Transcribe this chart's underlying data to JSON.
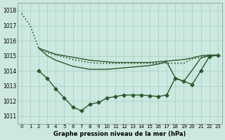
{
  "title": "Graphe pression niveau de la mer (hPa)",
  "background_color": "#cce8e0",
  "grid_color": "#aad4c8",
  "line_color": "#2d5a2d",
  "xlim": [
    -0.5,
    23.5
  ],
  "ylim": [
    1010.5,
    1018.5
  ],
  "yticks": [
    1011,
    1012,
    1013,
    1014,
    1015,
    1016,
    1017,
    1018
  ],
  "series": [
    {
      "x": [
        0,
        1,
        2,
        3,
        4,
        5,
        6,
        7,
        8,
        9,
        10,
        11,
        12,
        13,
        14,
        15,
        16,
        17,
        18,
        19,
        20,
        21,
        22,
        23
      ],
      "y": [
        1017.8,
        1017.0,
        1015.5,
        1015.2,
        1015.05,
        1014.9,
        1014.75,
        1014.65,
        1014.55,
        1014.5,
        1014.5,
        1014.5,
        1014.5,
        1014.5,
        1014.5,
        1014.5,
        1014.5,
        1014.5,
        1014.5,
        1014.5,
        1014.8,
        1014.9,
        1015.0,
        1015.0
      ],
      "marker": null,
      "linestyle": "dotted",
      "linewidth": 1.2
    },
    {
      "x": [
        2,
        3,
        4,
        5,
        6,
        7,
        8,
        9,
        10,
        11,
        12,
        13,
        14,
        15,
        16,
        17,
        18,
        19,
        20,
        21,
        22,
        23
      ],
      "y": [
        1015.5,
        1015.3,
        1015.1,
        1015.0,
        1014.9,
        1014.8,
        1014.7,
        1014.65,
        1014.6,
        1014.55,
        1014.55,
        1014.55,
        1014.55,
        1014.55,
        1014.6,
        1014.65,
        1014.7,
        1014.75,
        1014.85,
        1015.0,
        1015.05,
        1015.05
      ],
      "marker": null,
      "linestyle": "solid",
      "linewidth": 1.0
    },
    {
      "x": [
        2,
        3,
        4,
        5,
        6,
        7,
        8,
        9,
        10,
        11,
        12,
        13,
        14,
        15,
        16,
        17,
        18,
        19,
        20,
        21,
        22,
        23
      ],
      "y": [
        1015.5,
        1015.0,
        1014.7,
        1014.5,
        1014.3,
        1014.2,
        1014.1,
        1014.1,
        1014.1,
        1014.15,
        1014.2,
        1014.25,
        1014.3,
        1014.35,
        1014.45,
        1014.6,
        1013.55,
        1013.3,
        1014.05,
        1014.85,
        1015.0,
        1015.05
      ],
      "marker": null,
      "linestyle": "solid",
      "linewidth": 1.0
    },
    {
      "x": [
        2,
        3,
        4,
        5,
        6,
        7,
        8,
        9,
        10,
        11,
        12,
        13,
        14,
        15,
        16,
        17,
        18,
        19,
        20,
        21,
        22,
        23
      ],
      "y": [
        1014.0,
        1013.5,
        1012.8,
        1012.2,
        1011.6,
        1011.35,
        1011.8,
        1011.9,
        1012.2,
        1012.3,
        1012.4,
        1012.4,
        1012.4,
        1012.35,
        1012.3,
        1012.4,
        1013.5,
        1013.3,
        1013.1,
        1014.0,
        1014.95,
        1015.05
      ],
      "marker": "D",
      "markersize": 2.5,
      "linestyle": "solid",
      "linewidth": 1.0
    }
  ]
}
